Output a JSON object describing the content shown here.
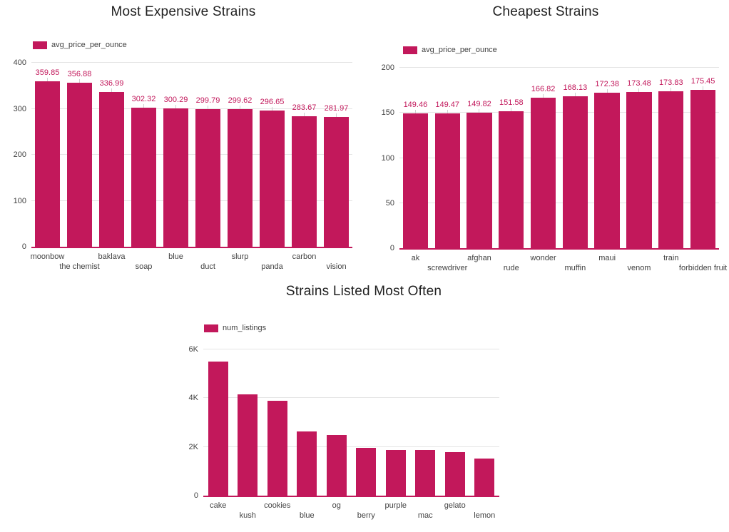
{
  "accent_color": "#C2185B",
  "chart_data": [
    {
      "type": "bar",
      "title": "Most Expensive Strains",
      "legend": "avg_price_per_ounce",
      "categories": [
        "moonbow",
        "the chemist",
        "baklava",
        "soap",
        "blue",
        "duct",
        "slurp",
        "panda",
        "carbon",
        "vision"
      ],
      "values": [
        359.85,
        356.88,
        336.99,
        302.32,
        300.29,
        299.79,
        299.62,
        296.65,
        283.67,
        281.97
      ],
      "value_labels": [
        "359.85",
        "356.88",
        "336.99",
        "302.32",
        "300.29",
        "299.79",
        "299.62",
        "296.65",
        "283.67",
        "281.97"
      ],
      "show_value_labels": true,
      "ylim": [
        0,
        400
      ],
      "yticks": [
        0,
        100,
        200,
        300,
        400
      ],
      "ytick_labels": [
        "0",
        "100",
        "200",
        "300",
        "400"
      ],
      "grid": true,
      "legend_position": "top-left"
    },
    {
      "type": "bar",
      "title": "Cheapest Strains",
      "legend": "avg_price_per_ounce",
      "categories": [
        "ak",
        "screwdriver",
        "afghan",
        "rude",
        "wonder",
        "muffin",
        "maui",
        "venom",
        "train",
        "forbidden fruit"
      ],
      "values": [
        149.46,
        149.47,
        149.82,
        151.58,
        166.82,
        168.13,
        172.38,
        173.48,
        173.83,
        175.45
      ],
      "value_labels": [
        "149.46",
        "149.47",
        "149.82",
        "151.58",
        "166.82",
        "168.13",
        "172.38",
        "173.48",
        "173.83",
        "175.45"
      ],
      "show_value_labels": true,
      "ylim": [
        0,
        200
      ],
      "yticks": [
        0,
        50,
        100,
        150,
        200
      ],
      "ytick_labels": [
        "0",
        "50",
        "100",
        "150",
        "200"
      ],
      "grid": true,
      "legend_position": "top-left"
    },
    {
      "type": "bar",
      "title": "Strains Listed Most Often",
      "legend": "num_listings",
      "categories": [
        "cake",
        "kush",
        "cookies",
        "blue",
        "og",
        "berry",
        "purple",
        "mac",
        "gelato",
        "lemon"
      ],
      "values": [
        5500,
        4150,
        3900,
        2620,
        2480,
        1960,
        1870,
        1860,
        1790,
        1520
      ],
      "show_value_labels": false,
      "ylim": [
        0,
        6000
      ],
      "yticks": [
        0,
        2000,
        4000,
        6000
      ],
      "ytick_labels": [
        "0",
        "2K",
        "4K",
        "6K"
      ],
      "grid": true,
      "legend_position": "top-left"
    }
  ]
}
